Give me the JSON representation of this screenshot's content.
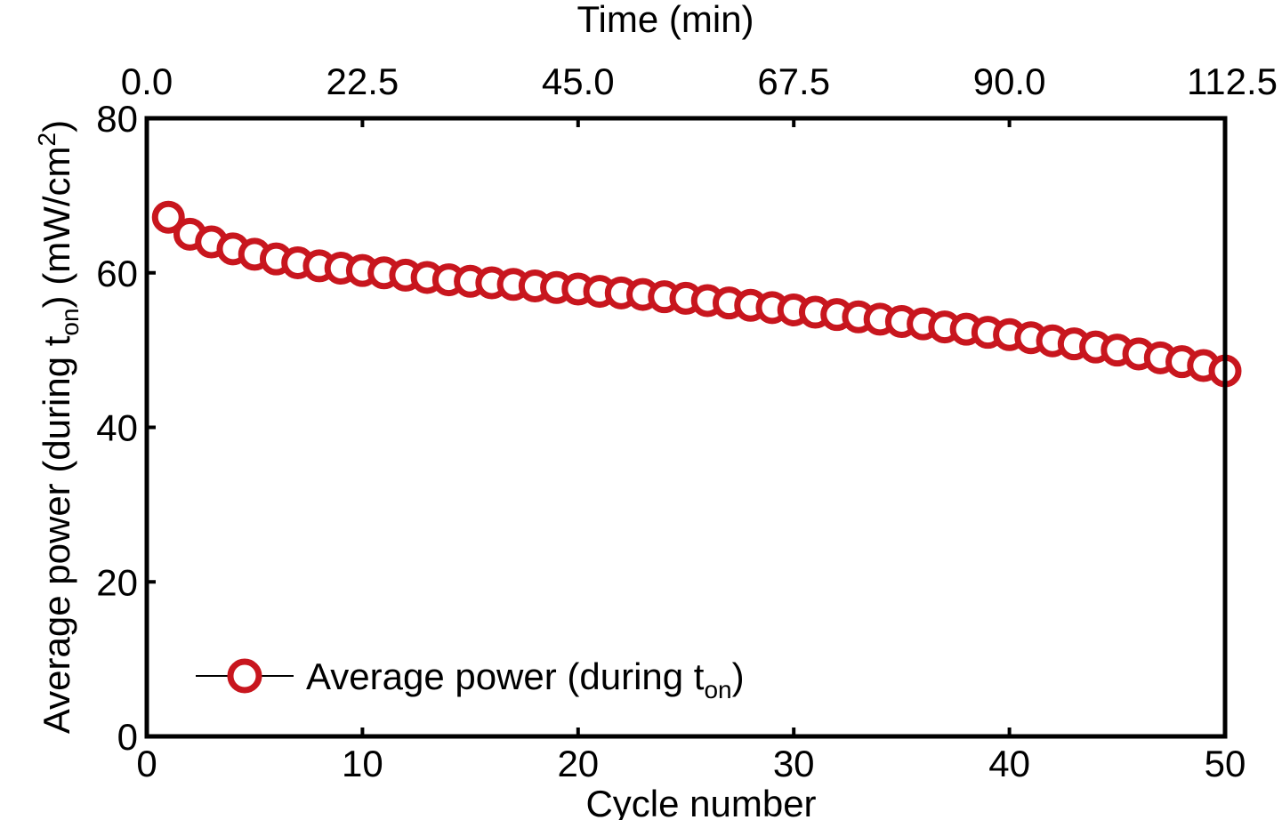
{
  "chart_data": {
    "type": "scatter",
    "title": "",
    "xlabel": "Cycle number",
    "ylabel": {
      "main": "Average power (during t",
      "sub": "on",
      "tail": ") (mW/cm",
      "sup": "2",
      "end": ")"
    },
    "top_xlabel": "Time (min)",
    "xlim": [
      0,
      50
    ],
    "ylim": [
      0,
      80
    ],
    "top_xlim": [
      0.0,
      112.5
    ],
    "x_ticks": [
      "0",
      "10",
      "20",
      "30",
      "40",
      "50"
    ],
    "y_ticks": [
      "0",
      "20",
      "40",
      "60",
      "80"
    ],
    "top_ticks": [
      "0.0",
      "22.5",
      "45.0",
      "67.5",
      "90.0",
      "112.5"
    ],
    "grid": false,
    "legend": {
      "position": "bottom-left",
      "label_main": "Average power (during t",
      "label_sub": "on",
      "label_end": ")"
    },
    "series": [
      {
        "name": "Average power (during t_on)",
        "color": "#c8161e",
        "marker": "open-circle",
        "x": [
          1,
          2,
          3,
          4,
          5,
          6,
          7,
          8,
          9,
          10,
          11,
          12,
          13,
          14,
          15,
          16,
          17,
          18,
          19,
          20,
          21,
          22,
          23,
          24,
          25,
          26,
          27,
          28,
          29,
          30,
          31,
          32,
          33,
          34,
          35,
          36,
          37,
          38,
          39,
          40,
          41,
          42,
          43,
          44,
          45,
          46,
          47,
          48,
          49,
          50
        ],
        "values": [
          67.2,
          65.0,
          64.0,
          63.1,
          62.4,
          61.8,
          61.3,
          60.9,
          60.6,
          60.3,
          60.0,
          59.7,
          59.4,
          59.1,
          58.9,
          58.7,
          58.5,
          58.3,
          58.1,
          57.9,
          57.6,
          57.4,
          57.2,
          56.9,
          56.7,
          56.4,
          56.1,
          55.8,
          55.5,
          55.2,
          54.9,
          54.6,
          54.3,
          54.0,
          53.7,
          53.4,
          53.0,
          52.7,
          52.3,
          52.0,
          51.6,
          51.2,
          50.8,
          50.4,
          50.0,
          49.5,
          49.0,
          48.5,
          48.0,
          47.3
        ]
      }
    ]
  }
}
